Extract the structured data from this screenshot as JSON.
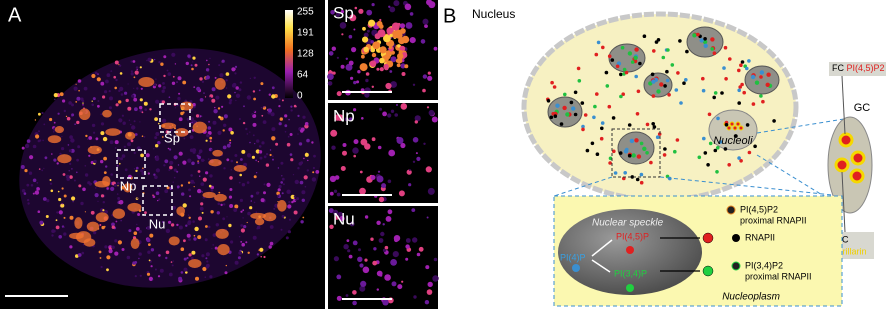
{
  "panel_a": {
    "label": "A",
    "colorbar_ticks": [
      "255",
      "191",
      "128",
      "64",
      "0"
    ],
    "regions": [
      "Sp",
      "Np",
      "Nu"
    ],
    "insets": [
      "Sp",
      "Np",
      "Nu"
    ]
  },
  "panel_b": {
    "label": "B",
    "title": "Nucleus",
    "nucleoli_label": "Nucleoli",
    "fc_prefix": "FC",
    "fc_lipid": "PI(4,5)P2",
    "gc": "GC",
    "dfc": "DFC",
    "fibrillarin": "Fibrillarin",
    "speckle": {
      "title": "Nuclear speckle",
      "source": "PI(4)P",
      "top": "PI(4,5)P",
      "bottom": "PI(3,4)P"
    },
    "nucleoplasm": "Nucleoplasm",
    "legend": [
      {
        "line1": "PI(4,5)P2",
        "line2": "proximal RNAPII"
      },
      {
        "line1": "RNAPII"
      },
      {
        "line1": "PI(3,4)P2",
        "line2": "proximal RNAPII"
      }
    ]
  }
}
